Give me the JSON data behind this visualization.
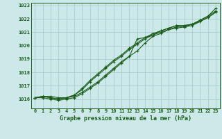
{
  "title": "Graphe pression niveau de la mer (hPa)",
  "background_color": "#cce8e8",
  "grid_color": "#aacccc",
  "line_color": "#1a5c1a",
  "x_labels": [
    "0",
    "1",
    "2",
    "3",
    "4",
    "5",
    "6",
    "7",
    "8",
    "9",
    "10",
    "11",
    "12",
    "13",
    "14",
    "15",
    "16",
    "17",
    "18",
    "19",
    "20",
    "21",
    "22",
    "23"
  ],
  "ylim": [
    1015.3,
    1023.2
  ],
  "yticks": [
    1016,
    1017,
    1018,
    1019,
    1020,
    1021,
    1022,
    1023
  ],
  "series": [
    [
      1016.1,
      1016.2,
      1016.1,
      1016.0,
      1016.1,
      1016.2,
      1016.5,
      1016.9,
      1017.3,
      1017.8,
      1018.3,
      1018.8,
      1019.2,
      1020.5,
      1020.6,
      1020.8,
      1021.0,
      1021.2,
      1021.4,
      1021.4,
      1021.6,
      1021.9,
      1022.2,
      1022.8
    ],
    [
      1016.1,
      1016.1,
      1016.0,
      1015.9,
      1016.0,
      1016.1,
      1016.4,
      1016.8,
      1017.2,
      1017.7,
      1018.2,
      1018.7,
      1019.2,
      1019.6,
      1020.2,
      1020.7,
      1020.9,
      1021.2,
      1021.3,
      1021.4,
      1021.5,
      1021.8,
      1022.1,
      1022.5
    ],
    [
      1016.1,
      1016.2,
      1016.2,
      1016.1,
      1016.1,
      1016.3,
      1016.7,
      1017.3,
      1017.8,
      1018.3,
      1018.8,
      1019.2,
      1019.7,
      1020.1,
      1020.5,
      1020.8,
      1021.1,
      1021.3,
      1021.5,
      1021.5,
      1021.6,
      1021.8,
      1022.1,
      1022.5
    ],
    [
      1016.1,
      1016.2,
      1016.1,
      1016.0,
      1016.1,
      1016.3,
      1016.8,
      1017.4,
      1017.9,
      1018.4,
      1018.9,
      1019.3,
      1019.8,
      1020.2,
      1020.6,
      1020.9,
      1021.1,
      1021.3,
      1021.5,
      1021.5,
      1021.6,
      1021.9,
      1022.2,
      1022.6
    ]
  ]
}
